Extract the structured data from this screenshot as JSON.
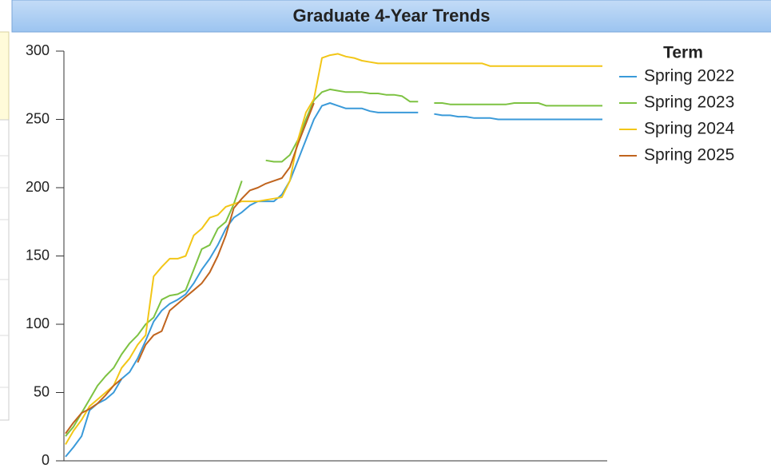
{
  "chart_data": {
    "type": "line",
    "title": "Graduate 4-Year Trends",
    "legend_title": "Term",
    "legend": "right",
    "ylim": [
      0,
      300
    ],
    "yticks": [
      0,
      50,
      100,
      150,
      200,
      250,
      300
    ],
    "series": [
      {
        "name": "Spring 2022",
        "color": "#3a9ad9",
        "values": [
          3,
          10,
          18,
          37,
          42,
          45,
          50,
          60,
          65,
          75,
          88,
          102,
          110,
          115,
          118,
          122,
          130,
          140,
          148,
          158,
          170,
          178,
          182,
          187,
          190,
          190,
          190,
          195,
          205,
          220,
          235,
          250,
          260,
          262,
          260,
          258,
          258,
          258,
          256,
          255,
          255,
          255,
          255,
          255,
          255,
          null,
          254,
          253,
          253,
          252,
          252,
          251,
          251,
          251,
          250,
          250,
          250,
          250,
          250,
          250,
          250,
          250,
          250,
          250,
          250,
          250,
          250,
          250
        ]
      },
      {
        "name": "Spring 2023",
        "color": "#7dc242",
        "values": [
          18,
          25,
          35,
          45,
          55,
          62,
          68,
          78,
          86,
          92,
          100,
          105,
          118,
          121,
          122,
          125,
          140,
          155,
          158,
          170,
          175,
          188,
          205,
          null,
          null,
          220,
          219,
          219,
          224,
          235,
          250,
          264,
          270,
          272,
          271,
          270,
          270,
          270,
          269,
          269,
          268,
          268,
          267,
          263,
          263,
          null,
          262,
          262,
          261,
          261,
          261,
          261,
          261,
          261,
          261,
          261,
          262,
          262,
          262,
          262,
          260,
          260,
          260,
          260,
          260,
          260,
          260,
          260
        ]
      },
      {
        "name": "Spring 2024",
        "color": "#f2c617",
        "values": [
          12,
          22,
          30,
          40,
          45,
          50,
          55,
          68,
          75,
          85,
          92,
          135,
          142,
          148,
          148,
          150,
          165,
          170,
          178,
          180,
          186,
          188,
          190,
          190,
          190,
          191,
          192,
          193,
          205,
          235,
          255,
          265,
          295,
          297,
          298,
          296,
          295,
          293,
          292,
          291,
          291,
          291,
          291,
          291,
          291,
          291,
          291,
          291,
          291,
          291,
          291,
          291,
          291,
          289,
          289,
          289,
          289,
          289,
          289,
          289,
          289,
          289,
          289,
          289,
          289,
          289,
          289,
          289
        ]
      },
      {
        "name": "Spring 2025",
        "color": "#c0641e",
        "values": [
          20,
          28,
          35,
          38,
          42,
          48,
          55,
          60,
          null,
          72,
          85,
          92,
          95,
          110,
          115,
          120,
          125,
          130,
          138,
          150,
          165,
          185,
          192,
          198,
          200,
          203,
          205,
          207,
          215,
          232,
          247,
          262,
          null,
          null,
          null,
          null,
          null,
          null,
          null,
          null,
          null,
          null,
          null,
          null,
          null,
          null,
          null,
          null,
          null,
          null,
          null,
          null,
          null,
          null,
          null,
          null,
          null,
          null,
          null,
          null,
          null,
          null,
          null,
          null,
          null,
          null,
          null,
          null
        ]
      }
    ]
  }
}
